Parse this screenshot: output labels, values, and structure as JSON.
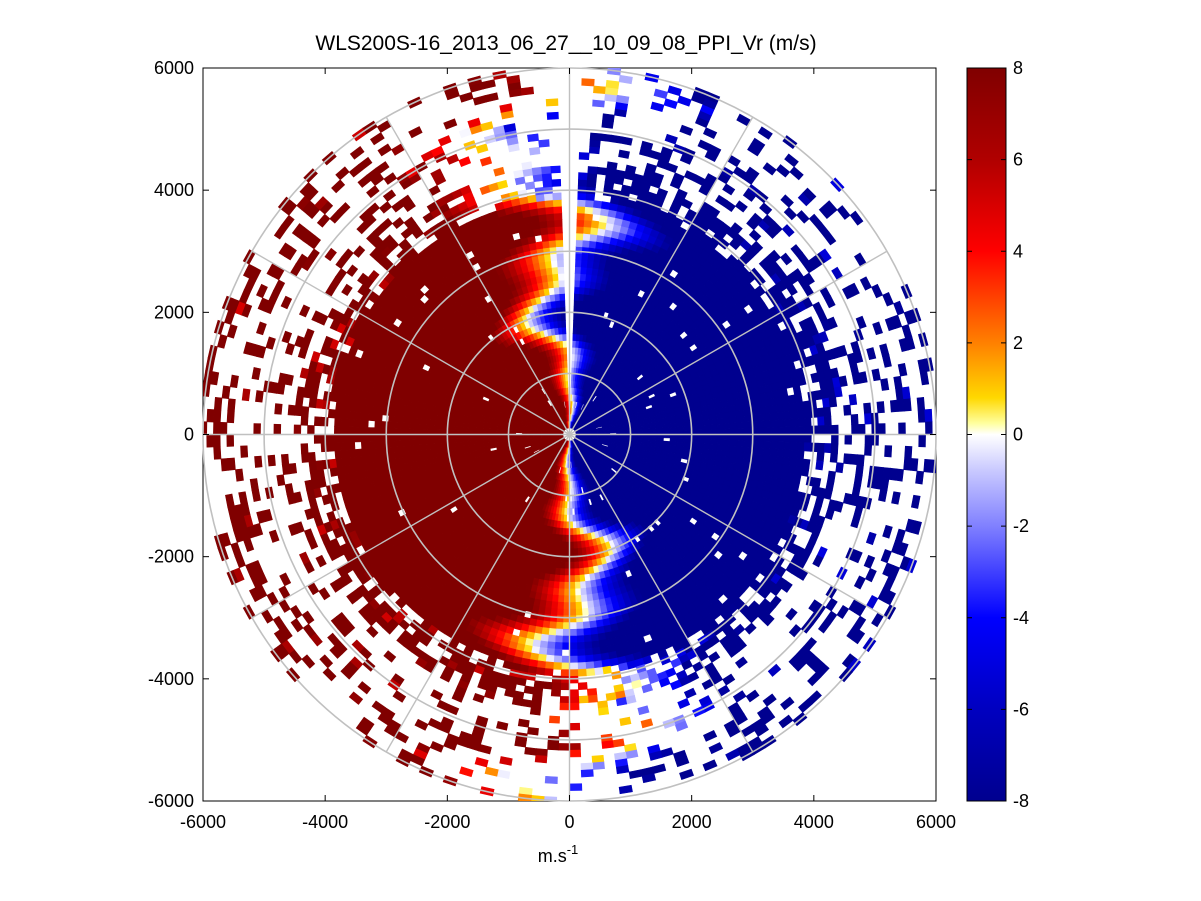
{
  "chart_data": {
    "type": "heatmap",
    "subtype": "polar-ppi",
    "title": "WLS200S-16_2013_06_27__10_09_08_PPI_Vr (m/s)",
    "xlabel": "m.s",
    "xlabel_superscript": "-1",
    "ylabel": "",
    "xlim": [
      -6000,
      6000
    ],
    "ylim": [
      -6000,
      6000
    ],
    "xticks": [
      -6000,
      -4000,
      -2000,
      0,
      2000,
      4000,
      6000
    ],
    "yticks": [
      6000,
      4000,
      2000,
      0,
      -2000,
      -4000,
      -6000
    ],
    "xtick_labels": [
      "-6000",
      "-4000",
      "-2000",
      "0",
      "2000",
      "4000",
      "6000"
    ],
    "ytick_labels": [
      "6000",
      "4000",
      "2000",
      "0",
      "-2000",
      "-4000",
      "-6000"
    ],
    "max_range": 6000,
    "range_rings": [
      1000,
      2000,
      3000,
      4000,
      5000,
      6000
    ],
    "spokes_deg": [
      0,
      30,
      60,
      90,
      120,
      150,
      180,
      210,
      240,
      270,
      300,
      330
    ],
    "colorbar": {
      "min": -8,
      "max": 8,
      "ticks": [
        8,
        6,
        4,
        2,
        0,
        -2,
        -4,
        -6,
        -8
      ],
      "tick_labels": [
        "8",
        "6",
        "4",
        "2",
        "0",
        "-2",
        "-4",
        "-6",
        "-8"
      ]
    },
    "field": {
      "description_values": "Radial velocity: positive (+8) on western half, negative (-8) on eastern half",
      "west_value": 8,
      "east_value": -8,
      "zero_line_bearing_deg": 355,
      "blanked_sector_deg": [
        358,
        362
      ],
      "dense_range_m": 3800,
      "outer_data_range_m": 6000
    },
    "colors": {
      "dark_red": "#800000",
      "red": "#ff0000",
      "orange": "#ff8000",
      "yellow": "#ffff00",
      "white": "#ffffff",
      "blue": "#0000ff",
      "dark_blue": "#00008f",
      "grid": "#c0c0c0"
    }
  }
}
